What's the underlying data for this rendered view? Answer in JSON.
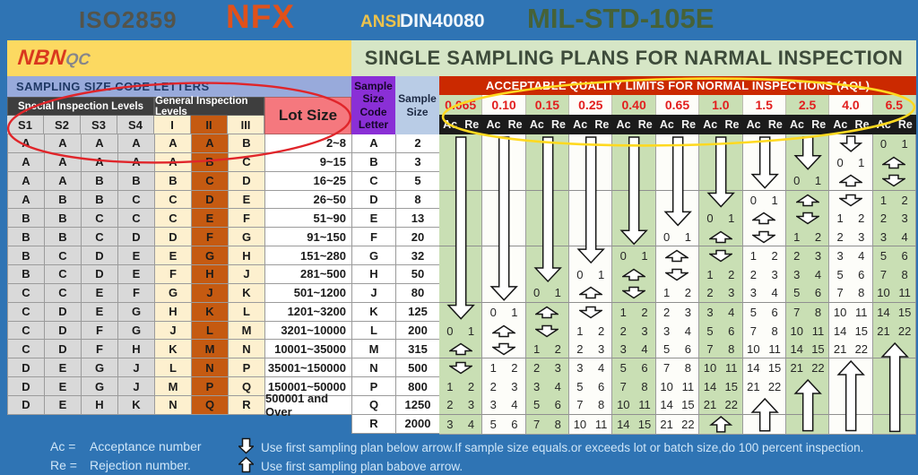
{
  "banner": {
    "iso": "ISO2859",
    "nfx": "NFX",
    "ansi": "ANSI",
    "din": "DIN40080",
    "mil": "MIL-STD-105E"
  },
  "logo": {
    "part1": "NBN",
    "part2": "QC"
  },
  "title": "SINGLE SAMPLING PLANS FOR NARMAL INSPECTION",
  "left_table": {
    "band_title": "SAMPLING SIZE CODE LETTERS",
    "group_headers": [
      "Special Inspection Levels",
      "General Inspection Levels"
    ],
    "columns": [
      "S1",
      "S2",
      "S3",
      "S4",
      "I",
      "II",
      "III"
    ],
    "lot_size_header": "Lot Size",
    "rows": [
      {
        "letters": [
          "A",
          "A",
          "A",
          "A",
          "A",
          "A",
          "B"
        ],
        "lot": "2~8"
      },
      {
        "letters": [
          "A",
          "A",
          "A",
          "A",
          "A",
          "B",
          "C"
        ],
        "lot": "9~15"
      },
      {
        "letters": [
          "A",
          "A",
          "B",
          "B",
          "B",
          "C",
          "D"
        ],
        "lot": "16~25"
      },
      {
        "letters": [
          "A",
          "B",
          "B",
          "C",
          "C",
          "D",
          "E"
        ],
        "lot": "26~50"
      },
      {
        "letters": [
          "B",
          "B",
          "C",
          "C",
          "C",
          "E",
          "F"
        ],
        "lot": "51~90"
      },
      {
        "letters": [
          "B",
          "B",
          "C",
          "D",
          "D",
          "F",
          "G"
        ],
        "lot": "91~150"
      },
      {
        "letters": [
          "B",
          "C",
          "D",
          "E",
          "E",
          "G",
          "H"
        ],
        "lot": "151~280"
      },
      {
        "letters": [
          "B",
          "C",
          "D",
          "E",
          "F",
          "H",
          "J"
        ],
        "lot": "281~500"
      },
      {
        "letters": [
          "C",
          "C",
          "E",
          "F",
          "G",
          "J",
          "K"
        ],
        "lot": "501~1200"
      },
      {
        "letters": [
          "C",
          "D",
          "E",
          "G",
          "H",
          "K",
          "L"
        ],
        "lot": "1201~3200"
      },
      {
        "letters": [
          "C",
          "D",
          "F",
          "G",
          "J",
          "L",
          "M"
        ],
        "lot": "3201~10000"
      },
      {
        "letters": [
          "C",
          "D",
          "F",
          "H",
          "K",
          "M",
          "N"
        ],
        "lot": "10001~35000"
      },
      {
        "letters": [
          "D",
          "E",
          "G",
          "J",
          "L",
          "N",
          "P"
        ],
        "lot": "35001~150000"
      },
      {
        "letters": [
          "D",
          "E",
          "G",
          "J",
          "M",
          "P",
          "Q"
        ],
        "lot": "150001~50000"
      },
      {
        "letters": [
          "D",
          "E",
          "H",
          "K",
          "N",
          "Q",
          "R"
        ],
        "lot": "500001 and Over"
      }
    ]
  },
  "middle_table": {
    "code_header": "Sample Size Code Letter",
    "size_header": "Sample Size",
    "rows": [
      [
        "A",
        "2"
      ],
      [
        "B",
        "3"
      ],
      [
        "C",
        "5"
      ],
      [
        "D",
        "8"
      ],
      [
        "E",
        "13"
      ],
      [
        "F",
        "20"
      ],
      [
        "G",
        "32"
      ],
      [
        "H",
        "50"
      ],
      [
        "J",
        "80"
      ],
      [
        "K",
        "125"
      ],
      [
        "L",
        "200"
      ],
      [
        "M",
        "315"
      ],
      [
        "N",
        "500"
      ],
      [
        "P",
        "800"
      ],
      [
        "Q",
        "1250"
      ],
      [
        "R",
        "2000"
      ]
    ]
  },
  "chart_data": {
    "type": "table",
    "title": "SINGLE SAMPLING PLANS FOR NARMAL INSPECTION",
    "row_letters": [
      "A",
      "B",
      "C",
      "D",
      "E",
      "F",
      "G",
      "H",
      "J",
      "K",
      "L",
      "M",
      "N",
      "P",
      "Q",
      "R"
    ],
    "aql_banner": "ACCEPTABLE QUALITY LIMITS FOR NORMAL INSPECTIONS (AQL)",
    "ac_label": "Ac",
    "re_label": "Re",
    "columns": [
      "0.065",
      "0.10",
      "0.15",
      "0.25",
      "0.40",
      "0.65",
      "1.0",
      "1.5",
      "2.5",
      "4.0",
      "6.5"
    ],
    "cells": [
      [
        "",
        "",
        "",
        "",
        "",
        "",
        "",
        "",
        "",
        "",
        "0 1",
        "UP",
        "DOWN",
        "1 2",
        "2 3",
        "3 4"
      ],
      [
        "",
        "",
        "",
        "",
        "",
        "",
        "",
        "",
        "",
        "0 1",
        "UP",
        "DOWN",
        "1 2",
        "2 3",
        "3 4",
        "5 6"
      ],
      [
        "",
        "",
        "",
        "",
        "",
        "",
        "",
        "",
        "0 1",
        "UP",
        "DOWN",
        "1 2",
        "2 3",
        "3 4",
        "5 6",
        "7 8"
      ],
      [
        "",
        "",
        "",
        "",
        "",
        "",
        "",
        "0 1",
        "UP",
        "DOWN",
        "1 2",
        "2 3",
        "3 4",
        "5 6",
        "7 8",
        "10 11"
      ],
      [
        "",
        "",
        "",
        "",
        "",
        "",
        "0 1",
        "UP",
        "DOWN",
        "1 2",
        "2 3",
        "3 4",
        "5 6",
        "7 8",
        "10 11",
        "14 15"
      ],
      [
        "",
        "",
        "",
        "",
        "",
        "0 1",
        "UP",
        "DOWN",
        "1 2",
        "2 3",
        "3 4",
        "5 6",
        "7 8",
        "10 11",
        "14 15",
        "21 22"
      ],
      [
        "",
        "",
        "",
        "",
        "0 1",
        "UP",
        "DOWN",
        "1 2",
        "2 3",
        "3 4",
        "5 6",
        "7 8",
        "10 11",
        "14 15",
        "21 22",
        ""
      ],
      [
        "",
        "",
        "",
        "0 1",
        "UP",
        "DOWN",
        "1 2",
        "2 3",
        "3 4",
        "5 6",
        "7 8",
        "10 11",
        "14 15",
        "21 22",
        "",
        ""
      ],
      [
        "",
        "",
        "0 1",
        "UP",
        "DOWN",
        "1 2",
        "2 3",
        "3 4",
        "5 6",
        "7 8",
        "10 11",
        "14 15",
        "21 22",
        "",
        "",
        ""
      ],
      [
        "",
        "0 1",
        "UP",
        "DOWN",
        "1 2",
        "2 3",
        "3 4",
        "5 6",
        "7 8",
        "10 11",
        "14 15",
        "21 22",
        "",
        "",
        "",
        ""
      ],
      [
        "0 1",
        "UP",
        "DOWN",
        "1 2",
        "2 3",
        "3 4",
        "5 6",
        "7 8",
        "10 11",
        "14 15",
        "21 22",
        "",
        "",
        "",
        "",
        ""
      ]
    ],
    "arrows": [
      {
        "col": 0,
        "from": 0,
        "to": 9,
        "dir": "down"
      },
      {
        "col": 1,
        "from": 0,
        "to": 8,
        "dir": "down"
      },
      {
        "col": 2,
        "from": 0,
        "to": 7,
        "dir": "down"
      },
      {
        "col": 3,
        "from": 0,
        "to": 6,
        "dir": "down"
      },
      {
        "col": 4,
        "from": 0,
        "to": 5,
        "dir": "down"
      },
      {
        "col": 5,
        "from": 0,
        "to": 4,
        "dir": "down"
      },
      {
        "col": 6,
        "from": 0,
        "to": 3,
        "dir": "down"
      },
      {
        "col": 7,
        "from": 0,
        "to": 2,
        "dir": "down"
      },
      {
        "col": 8,
        "from": 0,
        "to": 1,
        "dir": "down"
      },
      {
        "col": 9,
        "from": 0,
        "to": 0,
        "dir": "down"
      },
      {
        "col": 6,
        "from": 15,
        "to": 15,
        "dir": "up"
      },
      {
        "col": 7,
        "from": 14,
        "to": 15,
        "dir": "up"
      },
      {
        "col": 8,
        "from": 13,
        "to": 15,
        "dir": "up"
      },
      {
        "col": 9,
        "from": 12,
        "to": 15,
        "dir": "up"
      },
      {
        "col": 10,
        "from": 11,
        "to": 15,
        "dir": "up"
      }
    ]
  },
  "footer": {
    "ac_label": "Ac =",
    "ac_text": "Acceptance number",
    "re_label": "Re =",
    "re_text": "Rejection number.",
    "down_note": "Use first sampling plan below arrow.If sample size equals.or exceeds lot or batch size,do 100 percent inspection.",
    "up_note": "Use first sampling plan babove arrow."
  },
  "colors": {
    "page_bg": "#2f74b4",
    "yellow_band": "#fcd961",
    "title_band": "#d6e6c6",
    "title_text": "#3d4b3a",
    "band_blue": "#98aadb",
    "band_blue_text": "#1f3864",
    "dark_header": "#3e3e3e",
    "gray_col": "#d9d9d9",
    "cream_col": "#fdf0cf",
    "orange_col": "#c55a11",
    "lot_header": "#f5787e",
    "purple_header": "#8a2fd6",
    "blue_header": "#b9cce6",
    "aql_banner": "#cb2900",
    "aql_red": "#e21e1e",
    "acre_bar": "#1b1b1b",
    "green_col": "#c9dfb4",
    "cell_border": "#9b9b9b",
    "footer_text": "#cfe6f8",
    "logo_red": "#d9381e",
    "logo_gray": "#86868a",
    "banner_iso": "#54544a",
    "banner_nfx": "#e0511b",
    "banner_ansi": "#ecc24c",
    "banner_din": "#f0f6fc",
    "banner_mil": "#466238",
    "ellipse_red": "#e0252a",
    "ellipse_yellow": "#ffd920"
  }
}
